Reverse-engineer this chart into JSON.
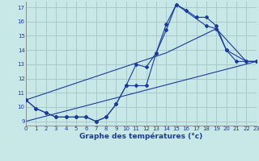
{
  "title": "Graphe des températures (°c)",
  "bg_color": "#c8e8e8",
  "grid_color": "#aacaca",
  "line_color": "#1a3a9e",
  "xlim": [
    0,
    23
  ],
  "ylim": [
    8.7,
    17.4
  ],
  "xticks": [
    0,
    1,
    2,
    3,
    4,
    5,
    6,
    7,
    8,
    9,
    10,
    11,
    12,
    13,
    14,
    15,
    16,
    17,
    18,
    19,
    20,
    21,
    22,
    23
  ],
  "yticks": [
    9,
    10,
    11,
    12,
    13,
    14,
    15,
    16,
    17
  ],
  "series1_x": [
    0,
    1,
    2,
    3,
    4,
    5,
    6,
    7,
    8,
    9,
    10,
    11,
    12,
    13,
    14,
    15,
    16,
    17,
    18,
    19,
    20,
    21,
    22,
    23
  ],
  "series1_y": [
    10.5,
    9.9,
    9.6,
    9.3,
    9.3,
    9.3,
    9.3,
    9.0,
    9.3,
    10.2,
    11.5,
    13.0,
    12.8,
    13.8,
    15.4,
    17.2,
    16.8,
    16.3,
    16.3,
    15.7,
    14.0,
    13.2,
    13.2,
    13.2
  ],
  "series2_x": [
    0,
    1,
    2,
    3,
    4,
    5,
    6,
    7,
    8,
    9,
    10,
    11,
    12,
    13,
    14,
    15,
    18,
    19,
    20,
    22,
    23
  ],
  "series2_y": [
    10.5,
    9.9,
    9.6,
    9.3,
    9.3,
    9.3,
    9.3,
    9.0,
    9.3,
    10.2,
    11.5,
    11.5,
    11.5,
    13.8,
    15.8,
    17.2,
    15.7,
    15.5,
    14.0,
    13.2,
    13.2
  ],
  "series3_x": [
    0,
    14,
    19,
    22,
    23
  ],
  "series3_y": [
    10.5,
    13.8,
    15.5,
    13.2,
    13.2
  ],
  "series4_x": [
    0,
    23
  ],
  "series4_y": [
    9.0,
    13.2
  ]
}
